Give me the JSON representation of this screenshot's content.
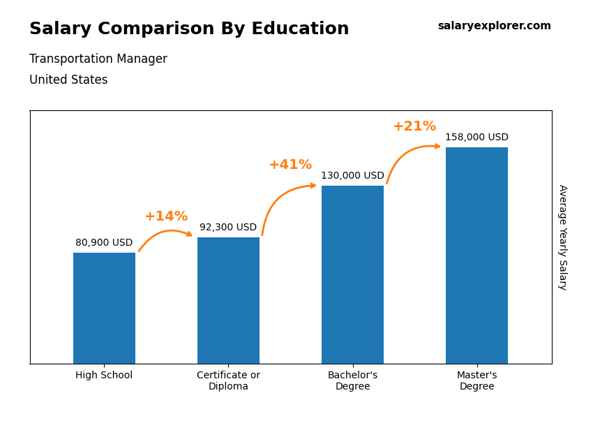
{
  "chart_data": {
    "type": "bar",
    "title": "Salary Comparison By Education",
    "subtitle": [
      "Transportation Manager",
      "United States"
    ],
    "y_label": "Average Yearly Salary",
    "categories": [
      "High School",
      "Certificate or\nDiploma",
      "Bachelor's\nDegree",
      "Master's\nDegree"
    ],
    "values": [
      80900,
      92300,
      130000,
      158000
    ],
    "value_labels": [
      "80,900 USD",
      "92,300 USD",
      "130,000 USD",
      "158,000 USD"
    ],
    "data_labels": true,
    "ylim": [
      0,
      185000
    ],
    "tick_labels": "x",
    "grid": false,
    "annotations": [
      {
        "text": "+14%",
        "from": 0,
        "to": 1
      },
      {
        "text": "+41%",
        "from": 1,
        "to": 2
      },
      {
        "text": "+21%",
        "from": 2,
        "to": 3
      },
      {
        "text": "salaryexplorer.com"
      }
    ]
  }
}
